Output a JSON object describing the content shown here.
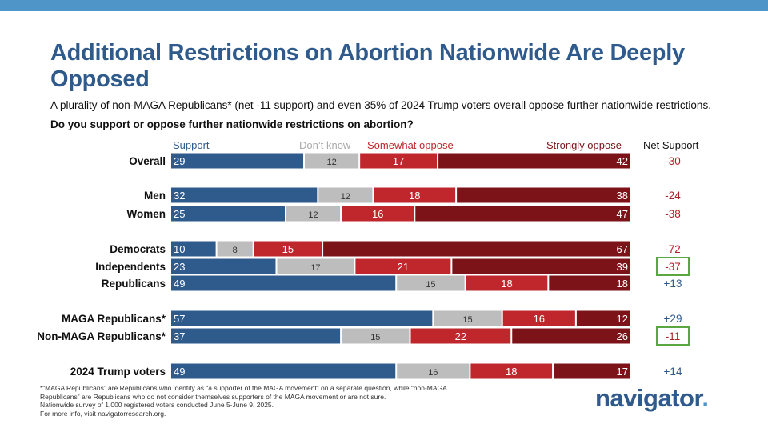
{
  "header": {
    "title": "Additional Restrictions on Abortion Nationwide Are Deeply Opposed",
    "subtitle": "A plurality of non-MAGA Republicans* (net -11 support) and even 35% of 2024 Trump voters overall oppose further nationwide restrictions.",
    "question": "Do you support or oppose further nationwide restrictions on abortion?"
  },
  "legend": {
    "support": "Support",
    "dont_know": "Don’t know",
    "somewhat_oppose": "Somewhat oppose",
    "strongly_oppose": "Strongly oppose",
    "net_support": "Net Support"
  },
  "colors": {
    "support": "#2f5a8c",
    "dont_know": "#bdbdbd",
    "somewhat_oppose": "#c0272d",
    "strongly_oppose": "#7b1318",
    "highlight_box": "#5aa642",
    "net_negative": "#b12028",
    "net_positive": "#2f5a8c",
    "brand": "#2f5a8c",
    "top_bar": "#4f95c8"
  },
  "chart_data": {
    "type": "bar",
    "orientation": "horizontal",
    "stacked": true,
    "title": "Do you support or oppose further nationwide restrictions on abortion?",
    "units": "percent",
    "xlim": [
      0,
      100
    ],
    "categories": [
      "Overall",
      "Men",
      "Women",
      "Democrats",
      "Independents",
      "Republicans",
      "MAGA Republicans*",
      "Non-MAGA Republicans*",
      "2024 Trump voters"
    ],
    "series": [
      {
        "name": "Support",
        "key": "support",
        "values": [
          29,
          32,
          25,
          10,
          23,
          49,
          57,
          37,
          49
        ]
      },
      {
        "name": "Don’t know",
        "key": "dont_know",
        "values": [
          12,
          12,
          12,
          8,
          17,
          15,
          15,
          15,
          16
        ]
      },
      {
        "name": "Somewhat oppose",
        "key": "somewhat_oppose",
        "values": [
          17,
          18,
          16,
          15,
          21,
          18,
          16,
          22,
          18
        ]
      },
      {
        "name": "Strongly oppose",
        "key": "strongly_oppose",
        "values": [
          42,
          38,
          47,
          67,
          39,
          18,
          12,
          26,
          17
        ]
      }
    ],
    "net_support": [
      "-30",
      "-24",
      "-38",
      "-72",
      "-37",
      "+13",
      "+29",
      "-11",
      "+14"
    ],
    "highlighted": [
      "Independents",
      "Non-MAGA Republicans*"
    ]
  },
  "footnote": {
    "line1": "*“MAGA Republicans” are Republicans who identify as “a supporter of the MAGA movement” on a separate question, while “non-MAGA",
    "line2": "Republicans” are Republicans who do not consider themselves supporters of the MAGA movement or are not sure.",
    "line3": "Nationwide survey of 1,000 registered voters conducted June 5-June 9, 2025.",
    "line4": "For more info, visit navigatorresearch.org."
  },
  "brand": {
    "logo_text": "navigator",
    "logo_dot": "."
  }
}
